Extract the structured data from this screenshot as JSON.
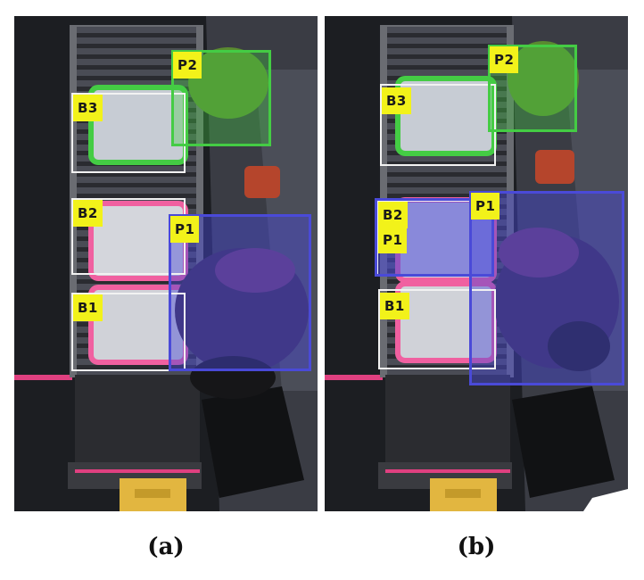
{
  "captions": {
    "a": "(a)",
    "b": "(b)"
  },
  "panels": {
    "a": {
      "labels": {
        "p2": "P2",
        "b3": "B3",
        "b2": "B2",
        "p1": "P1",
        "b1": "B1"
      }
    },
    "b": {
      "labels": {
        "p2": "P2",
        "b3": "B3",
        "b2": "B2",
        "p1_overlap": "P1",
        "p1": "P1",
        "b1": "B1"
      }
    }
  },
  "colors": {
    "person_box_blue": "#4a4ad8",
    "person_box_green": "#44cc44",
    "bin_box_white": "#f2f2f2",
    "bin_rim_pink": "#f060a0",
    "label_yellow": "#f2f21a"
  }
}
